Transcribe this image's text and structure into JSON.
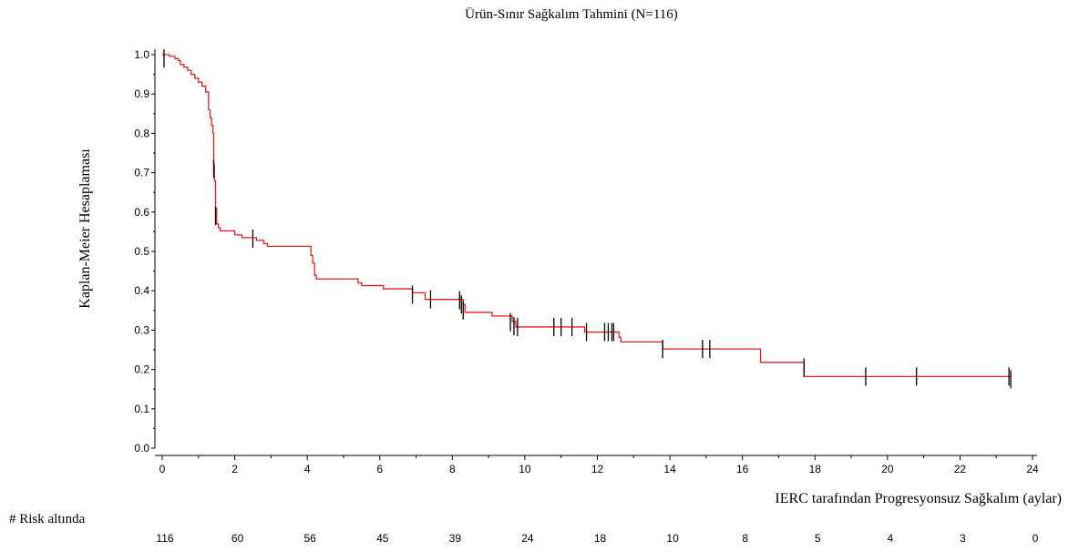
{
  "chart_data": {
    "type": "line",
    "title": "Ürün-Sınır Sağkalım Tahmini (N=116)",
    "xlabel": "IERC tarafından Progresyonsuz Sağkalım (aylar)",
    "ylabel": "Kaplan-Meier Hesaplaması",
    "xlim": [
      0,
      24
    ],
    "ylim": [
      0,
      1.0
    ],
    "x_ticks": [
      0,
      2,
      4,
      6,
      8,
      10,
      12,
      14,
      16,
      18,
      20,
      22,
      24
    ],
    "y_ticks": [
      0.0,
      0.1,
      0.2,
      0.3,
      0.4,
      0.5,
      0.6,
      0.7,
      0.8,
      0.9,
      1.0
    ],
    "y_tick_labels": [
      "0.0",
      "0.1",
      "0.2",
      "0.3",
      "0.4",
      "0.5",
      "0.6",
      "0.7",
      "0.8",
      "0.9",
      "1.0"
    ],
    "grid": false,
    "line_color": "#e0201c",
    "censor_color": "#000000",
    "series": [
      {
        "step_points": [
          [
            0,
            1.0
          ],
          [
            0.2,
            0.996
          ],
          [
            0.35,
            0.99
          ],
          [
            0.45,
            0.985
          ],
          [
            0.5,
            0.975
          ],
          [
            0.6,
            0.968
          ],
          [
            0.7,
            0.96
          ],
          [
            0.8,
            0.95
          ],
          [
            0.9,
            0.94
          ],
          [
            1.0,
            0.93
          ],
          [
            1.1,
            0.92
          ],
          [
            1.2,
            0.905
          ],
          [
            1.28,
            0.86
          ],
          [
            1.32,
            0.84
          ],
          [
            1.36,
            0.82
          ],
          [
            1.4,
            0.8
          ],
          [
            1.42,
            0.72
          ],
          [
            1.44,
            0.68
          ],
          [
            1.47,
            0.61
          ],
          [
            1.5,
            0.57
          ],
          [
            1.55,
            0.56
          ],
          [
            1.6,
            0.552
          ],
          [
            2.0,
            0.542
          ],
          [
            2.2,
            0.535
          ],
          [
            2.6,
            0.528
          ],
          [
            2.8,
            0.52
          ],
          [
            2.9,
            0.513
          ],
          [
            4.1,
            0.49
          ],
          [
            4.15,
            0.47
          ],
          [
            4.2,
            0.44
          ],
          [
            4.25,
            0.43
          ],
          [
            5.4,
            0.42
          ],
          [
            5.5,
            0.413
          ],
          [
            6.1,
            0.405
          ],
          [
            6.9,
            0.395
          ],
          [
            7.25,
            0.378
          ],
          [
            8.3,
            0.365
          ],
          [
            8.35,
            0.345
          ],
          [
            9.1,
            0.336
          ],
          [
            9.65,
            0.322
          ],
          [
            9.75,
            0.308
          ],
          [
            11.65,
            0.295
          ],
          [
            12.6,
            0.282
          ],
          [
            12.65,
            0.27
          ],
          [
            13.8,
            0.252
          ],
          [
            16.5,
            0.218
          ],
          [
            17.7,
            0.182
          ],
          [
            23.4,
            0.182
          ]
        ],
        "censored": [
          [
            0.05,
            0.99
          ],
          [
            1.42,
            0.71
          ],
          [
            1.47,
            0.59
          ],
          [
            2.5,
            0.532
          ],
          [
            6.9,
            0.39
          ],
          [
            7.4,
            0.378
          ],
          [
            8.2,
            0.376
          ],
          [
            8.25,
            0.365
          ],
          [
            8.3,
            0.35
          ],
          [
            9.6,
            0.32
          ],
          [
            9.7,
            0.31
          ],
          [
            9.8,
            0.308
          ],
          [
            10.8,
            0.308
          ],
          [
            11.0,
            0.308
          ],
          [
            11.3,
            0.308
          ],
          [
            11.7,
            0.295
          ],
          [
            12.2,
            0.295
          ],
          [
            12.3,
            0.295
          ],
          [
            12.4,
            0.295
          ],
          [
            12.45,
            0.295
          ],
          [
            13.8,
            0.252
          ],
          [
            14.9,
            0.252
          ],
          [
            15.1,
            0.252
          ],
          [
            17.7,
            0.205
          ],
          [
            19.4,
            0.182
          ],
          [
            20.8,
            0.182
          ],
          [
            23.35,
            0.182
          ],
          [
            23.4,
            0.175
          ]
        ]
      }
    ],
    "risk_table": {
      "label": "# Risk altında",
      "values": [
        "116",
        "60",
        "56",
        "45",
        "39",
        "24",
        "18",
        "10",
        "8",
        "5",
        "4",
        "3",
        "0"
      ]
    }
  }
}
